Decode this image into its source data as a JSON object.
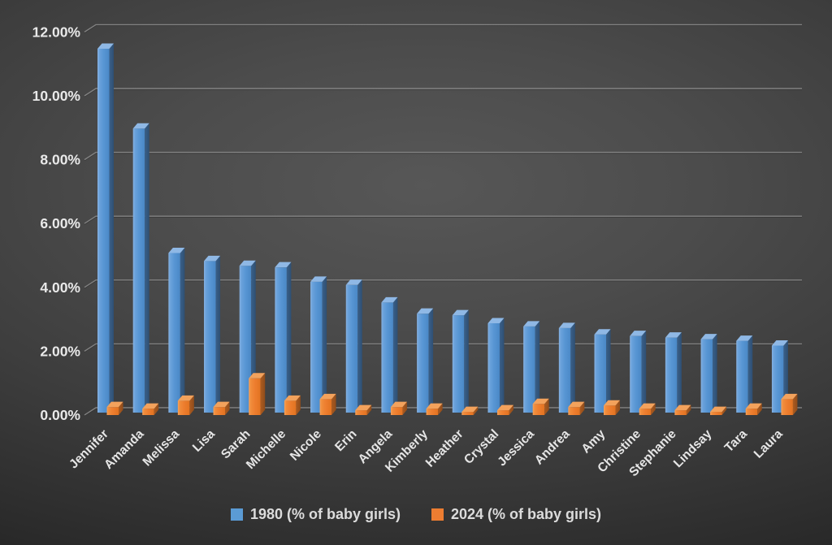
{
  "chart_data": {
    "type": "bar",
    "style": "3d-clustered-column",
    "title": "",
    "background": "dark-radial-gradient",
    "grid": true,
    "legend_position": "bottom",
    "ylim": [
      0,
      12
    ],
    "yticks": [
      {
        "value": 0,
        "label": "0.00%"
      },
      {
        "value": 2,
        "label": "2.00%"
      },
      {
        "value": 4,
        "label": "4.00%"
      },
      {
        "value": 6,
        "label": "6.00%"
      },
      {
        "value": 8,
        "label": "8.00%"
      },
      {
        "value": 10,
        "label": "10.00%"
      },
      {
        "value": 12,
        "label": "12.00%"
      }
    ],
    "categories": [
      "Jennifer",
      "Amanda",
      "Melissa",
      "Lisa",
      "Sarah",
      "Michelle",
      "Nicole",
      "Erin",
      "Angela",
      "Kimberly",
      "Heather",
      "Crystal",
      "Jessica",
      "Andrea",
      "Amy",
      "Christine",
      "Stephanie",
      "Lindsay",
      "Tara",
      "Laura"
    ],
    "series": [
      {
        "year": "1980",
        "name": "1980 (% of baby girls)",
        "color": "#5B9BD5",
        "values": [
          11.4,
          8.9,
          5.0,
          4.75,
          4.6,
          4.55,
          4.1,
          4.0,
          3.45,
          3.1,
          3.05,
          2.8,
          2.7,
          2.65,
          2.45,
          2.4,
          2.35,
          2.3,
          2.25,
          2.1
        ]
      },
      {
        "year": "2024",
        "name": "2024 (% of baby girls)",
        "color": "#ED7D31",
        "values": [
          0.25,
          0.2,
          0.45,
          0.25,
          1.15,
          0.45,
          0.5,
          0.15,
          0.25,
          0.2,
          0.1,
          0.15,
          0.35,
          0.25,
          0.3,
          0.2,
          0.15,
          0.1,
          0.2,
          0.5
        ]
      }
    ]
  },
  "legend": {
    "item_1980": "1980 (% of baby girls)",
    "item_2024": "2024 (% of baby girls)"
  }
}
